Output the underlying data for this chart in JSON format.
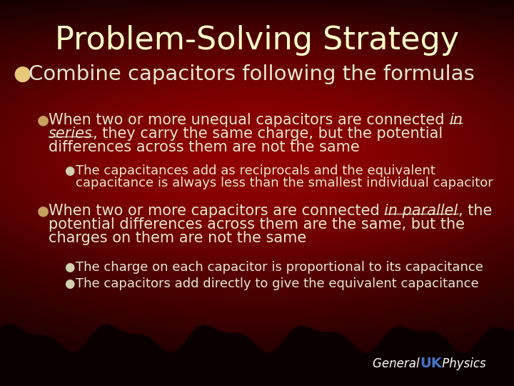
{
  "title": "Problem-Solving Strategy",
  "title_color": "#FFFFC8",
  "title_fontsize": 32,
  "text_color": "#E8E8D0",
  "bullet_l0_color": "#E8C87A",
  "bullet_l1_color": "#C8A060",
  "bullet_l2_color": "#D0D0B0",
  "footer_general_color": "#FFFFFF",
  "footer_uk_color": "#4472C4",
  "footer_physics_color": "#FFFFFF",
  "content": [
    {
      "level": 0,
      "lines": [
        [
          {
            "text": "Combine capacitors following the formulas",
            "style": "normal"
          }
        ]
      ]
    },
    {
      "level": 1,
      "lines": [
        [
          {
            "text": "When two or more unequal capacitors are connected ",
            "style": "normal"
          },
          {
            "text": "in",
            "style": "italic_underline"
          }
        ],
        [
          {
            "text": "series",
            "style": "italic_underline"
          },
          {
            "text": ", they carry the same charge, but the potential",
            "style": "normal"
          }
        ],
        [
          {
            "text": "differences across them are not the same",
            "style": "normal"
          }
        ]
      ]
    },
    {
      "level": 2,
      "lines": [
        [
          {
            "text": "The capacitances add as reciprocals and the equivalent",
            "style": "normal"
          }
        ],
        [
          {
            "text": "capacitance is always less than the smallest individual capacitor",
            "style": "normal"
          }
        ]
      ]
    },
    {
      "level": 1,
      "lines": [
        [
          {
            "text": "When two or more capacitors are connected ",
            "style": "normal"
          },
          {
            "text": "in parallel",
            "style": "italic_underline"
          },
          {
            "text": ", the",
            "style": "normal"
          }
        ],
        [
          {
            "text": "potential differences across them are the same, but the",
            "style": "normal"
          }
        ],
        [
          {
            "text": "charges on them are not the same",
            "style": "normal"
          }
        ]
      ]
    },
    {
      "level": 2,
      "lines": [
        [
          {
            "text": "The charge on each capacitor is proportional to its capacitance",
            "style": "normal"
          }
        ]
      ]
    },
    {
      "level": 2,
      "lines": [
        [
          {
            "text": "The capacitors add directly to give the equivalent capacitance",
            "style": "normal"
          }
        ]
      ]
    }
  ]
}
